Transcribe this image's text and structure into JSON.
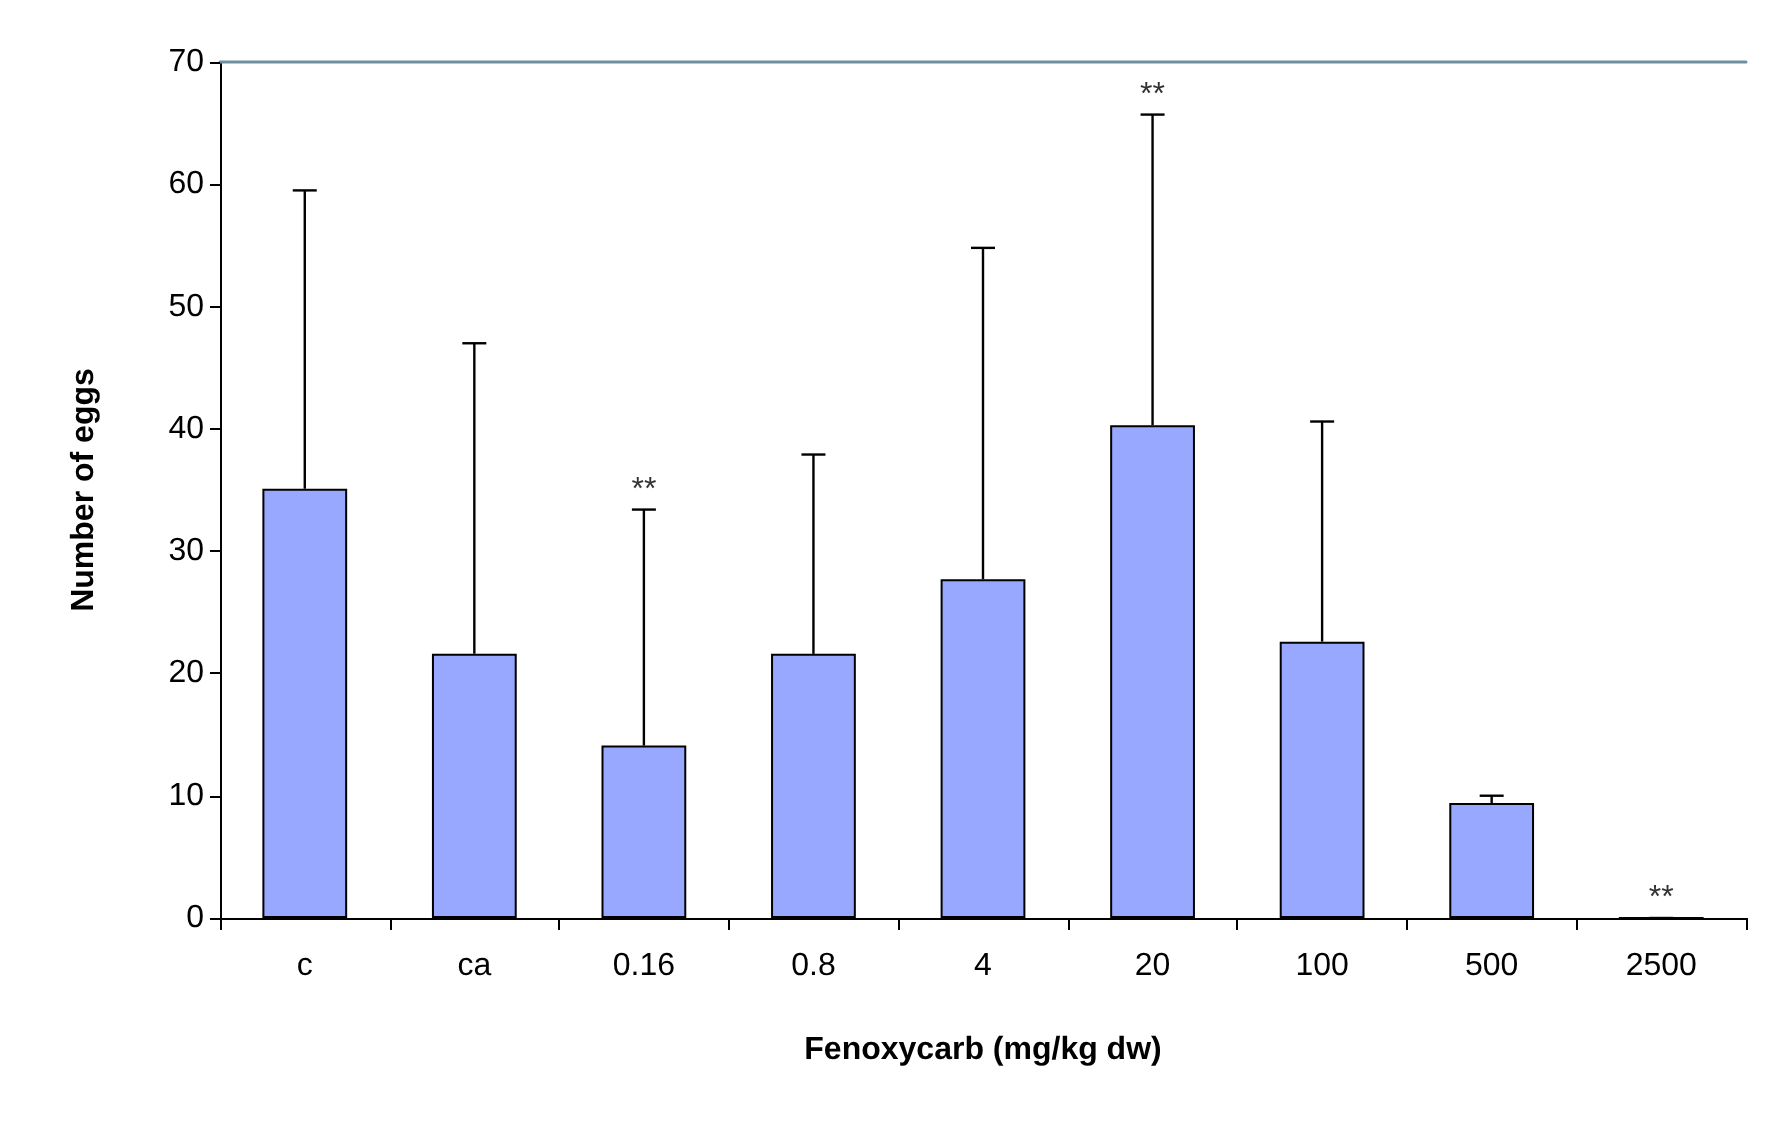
{
  "chart_data": {
    "type": "bar",
    "xlabel": "Fenoxycarb (mg/kg dw)",
    "ylabel": "Number of eggs",
    "categories": [
      "c",
      "ca",
      "0.16",
      "0.8",
      "4",
      "20",
      "100",
      "500",
      "2500"
    ],
    "values": [
      35.1,
      21.6,
      14.1,
      21.6,
      27.7,
      40.3,
      22.6,
      9.4,
      0
    ],
    "errors": [
      [
        35.1,
        59.5
      ],
      [
        21.6,
        47
      ],
      [
        14.1,
        33.4
      ],
      [
        21.6,
        37.9
      ],
      [
        27.7,
        54.8
      ],
      [
        40.3,
        65.7
      ],
      [
        22.6,
        40.6
      ],
      [
        9.4,
        10
      ],
      [
        0,
        0
      ]
    ],
    "color": "#99a8ff",
    "ylim": [
      0,
      70
    ],
    "yticks": [
      0,
      10,
      20,
      30,
      40,
      50,
      60,
      70
    ],
    "grid": false,
    "annotations": [
      {
        "text": "**",
        "x": "0.16",
        "y": 33.4
      },
      {
        "text": "**",
        "x": "20",
        "y": 65.7
      },
      {
        "text": "**",
        "x": "2500",
        "y": 0
      }
    ]
  }
}
